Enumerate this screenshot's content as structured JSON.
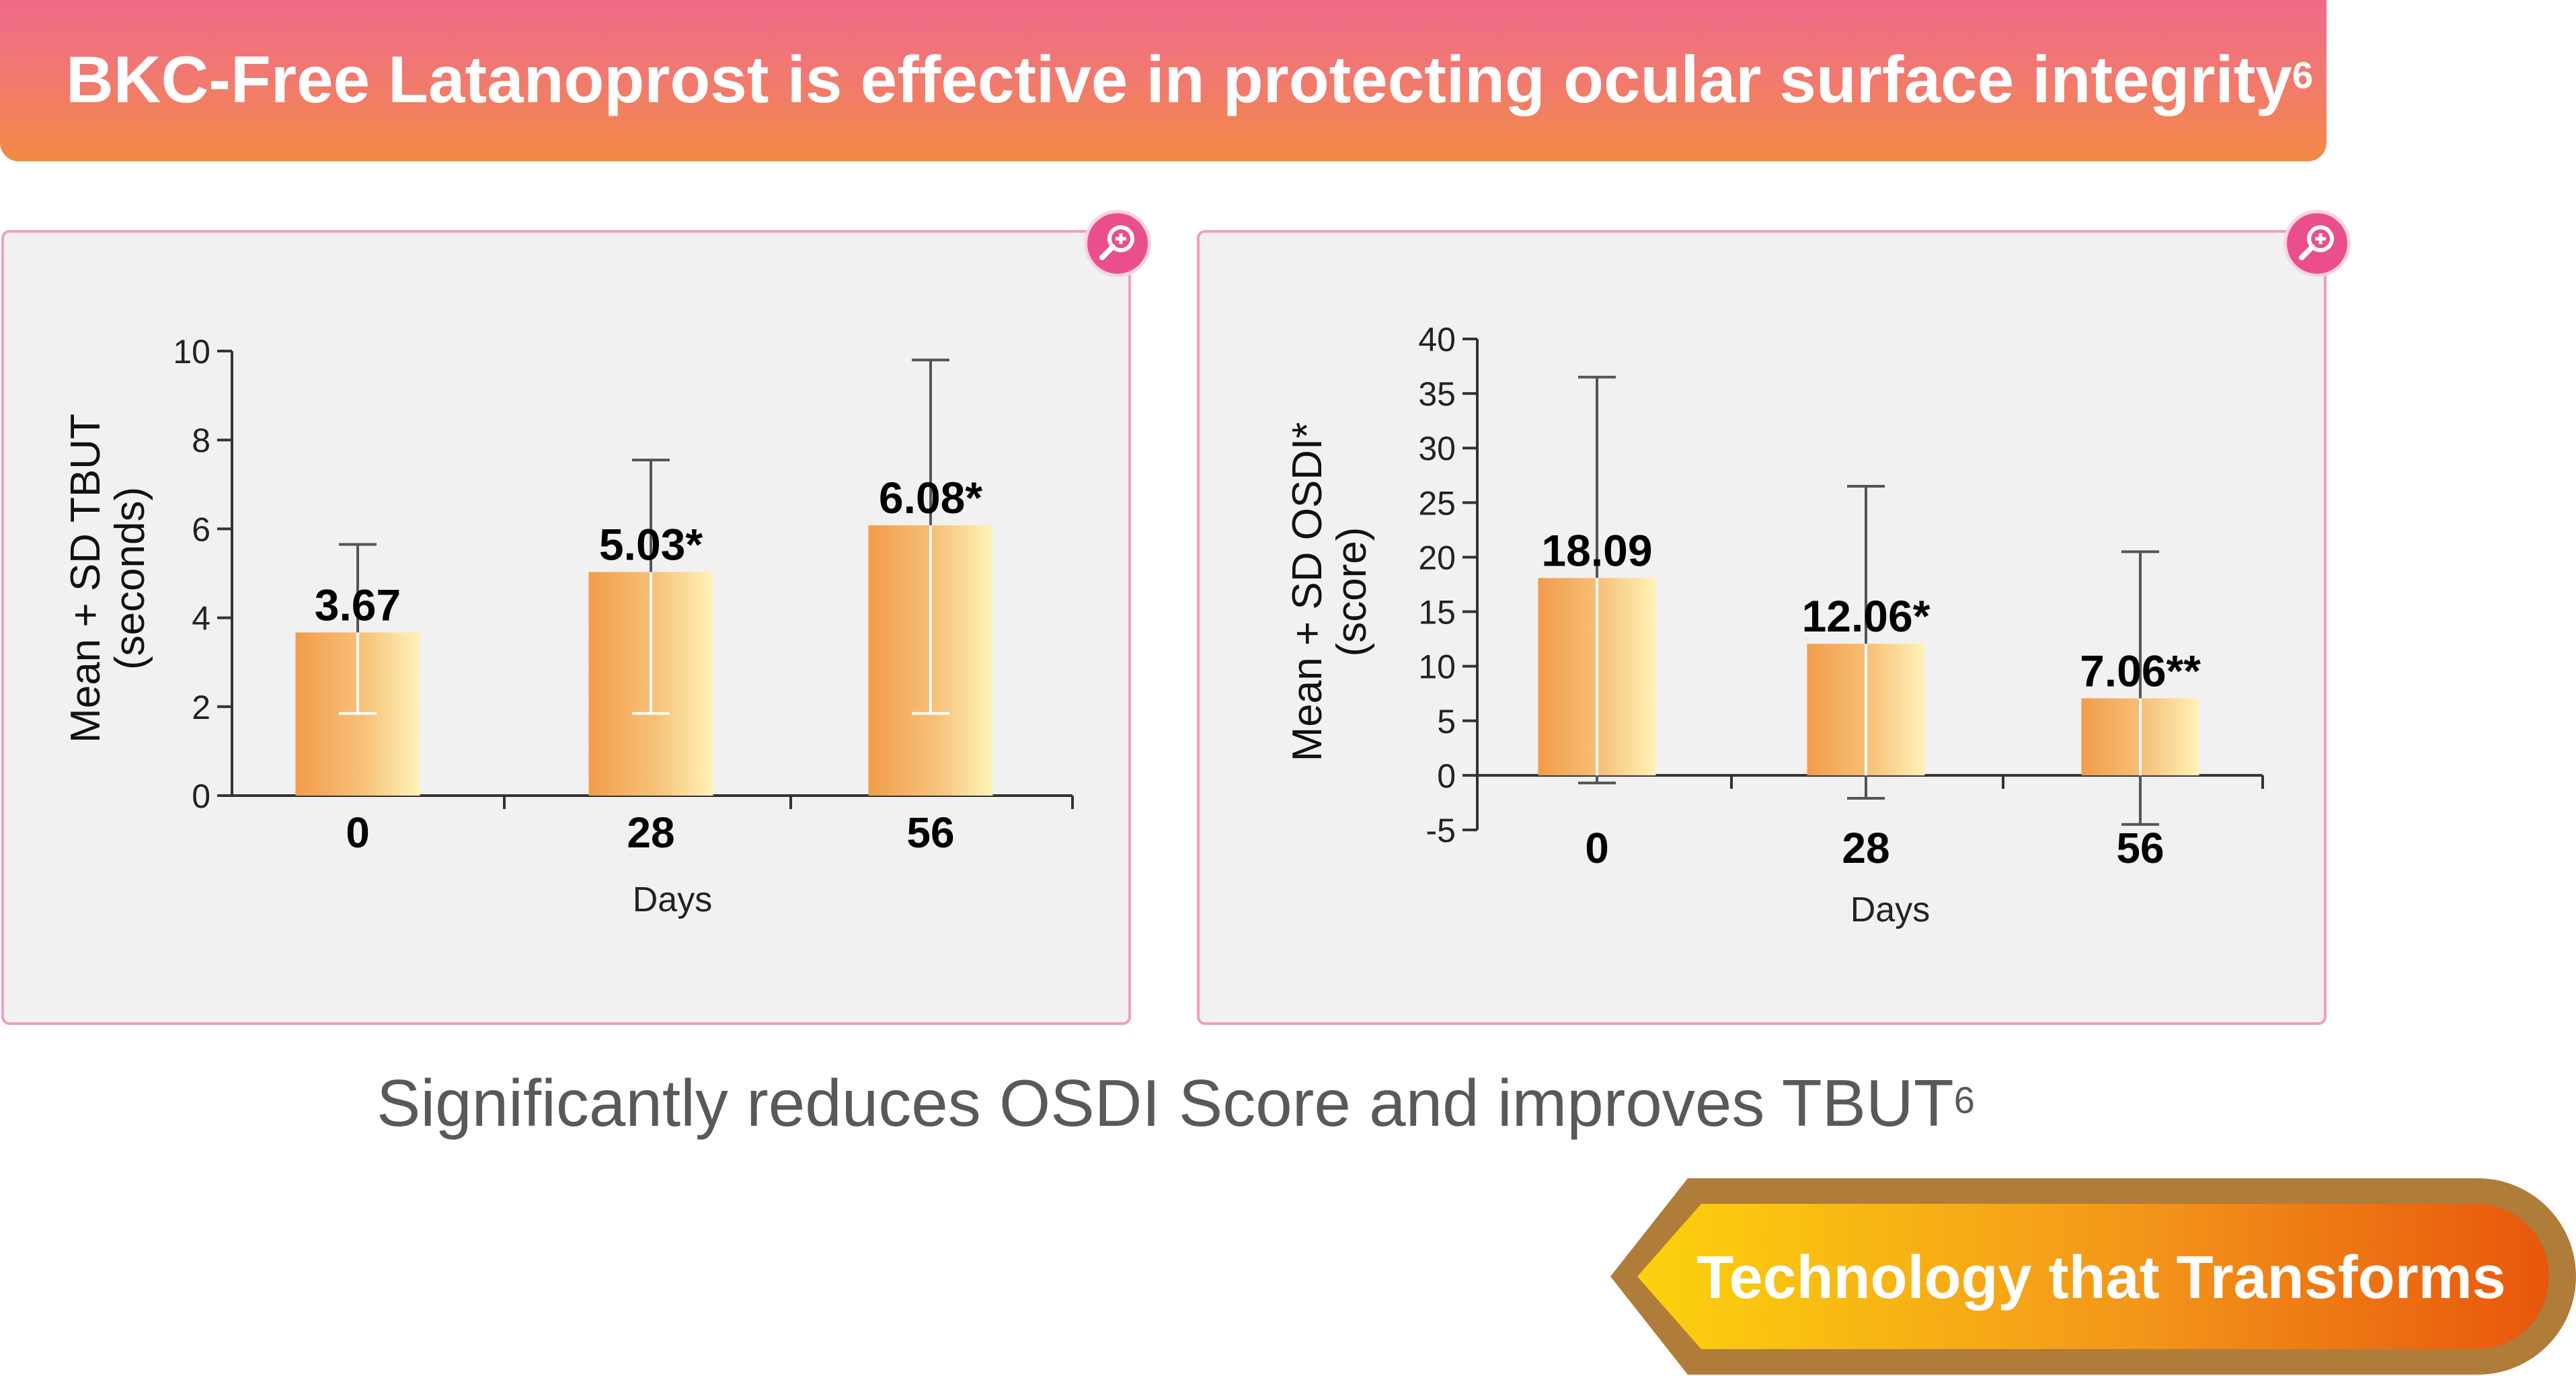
{
  "header": {
    "title": "BKC-Free Latanoprost is effective in protecting ocular surface integrity",
    "title_superscript": "6"
  },
  "subtitle": {
    "text": "Significantly reduces OSDI Score and improves TBUT",
    "superscript": "6"
  },
  "cta": {
    "label": "Technology that Transforms"
  },
  "icons": {
    "zoom": "zoom-in-icon"
  },
  "colors": {
    "banner_top": "#f06a8a",
    "banner_bottom": "#f28a44",
    "bar_dark": "#f2a04e",
    "bar_light": "#fff2b8",
    "panel_border": "#f0a0b8",
    "zoom_button": "#ea4f8b"
  },
  "chart_data": [
    {
      "type": "bar",
      "categories": [
        "0",
        "28",
        "56"
      ],
      "values": [
        3.67,
        5.03,
        6.08
      ],
      "data_labels": [
        "3.67",
        "5.03*",
        "6.08*"
      ],
      "error_upper": [
        5.65,
        7.55,
        9.8
      ],
      "error_lower": [
        1.85,
        1.85,
        1.85
      ],
      "xlabel": "Days",
      "ylabel": "Mean + SD TBUT\n(seconds)",
      "ylim": [
        0,
        10
      ],
      "yticks": [
        0,
        2,
        4,
        6,
        8,
        10
      ],
      "grid": false
    },
    {
      "type": "bar",
      "categories": [
        "0",
        "28",
        "56"
      ],
      "values": [
        18.09,
        12.06,
        7.06
      ],
      "data_labels": [
        "18.09",
        "12.06*",
        "7.06**"
      ],
      "error_upper": [
        36.5,
        26.5,
        20.5
      ],
      "error_lower": [
        -0.7,
        -2.1,
        -4.5
      ],
      "xlabel": "Days",
      "ylabel": "Mean + SD OSDI*\n(score)",
      "ylim": [
        -5,
        40
      ],
      "yticks": [
        -5,
        0,
        5,
        10,
        15,
        20,
        25,
        30,
        35,
        40
      ],
      "grid": false
    }
  ]
}
